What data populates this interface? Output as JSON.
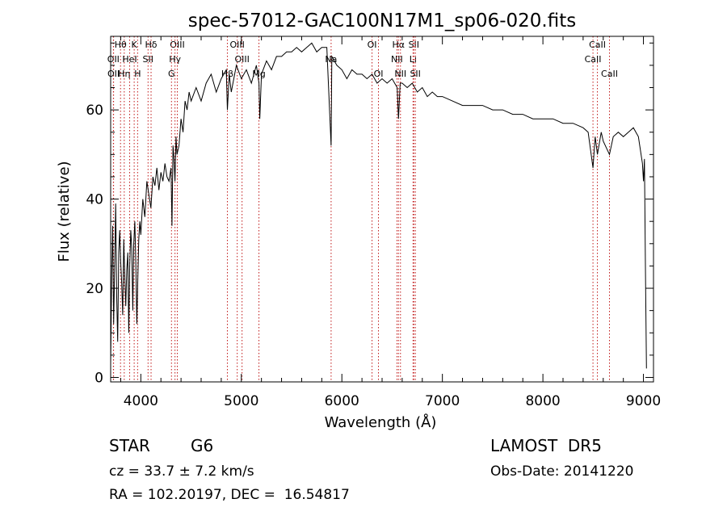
{
  "chart_data": {
    "type": "line",
    "title": "spec-57012-GAC100N17M1_sp06-020.fits",
    "xlabel": "Wavelength (Å)",
    "ylabel": "Flux (relative)",
    "xlim": [
      3700,
      9100
    ],
    "ylim": [
      -1,
      76.5
    ],
    "x_ticks": [
      4000,
      5000,
      6000,
      7000,
      8000,
      9000
    ],
    "y_ticks": [
      0,
      20,
      40,
      60
    ],
    "grid": false,
    "series": [
      {
        "x": [
          3700,
          3710,
          3720,
          3730,
          3740,
          3750,
          3760,
          3770,
          3780,
          3790,
          3800,
          3810,
          3820,
          3830,
          3840,
          3850,
          3860,
          3870,
          3880,
          3890,
          3900,
          3910,
          3920,
          3930,
          3940,
          3950,
          3960,
          3970,
          3980,
          3990,
          4000,
          4020,
          4040,
          4060,
          4080,
          4100,
          4120,
          4140,
          4160,
          4180,
          4200,
          4220,
          4240,
          4260,
          4280,
          4300,
          4310,
          4320,
          4330,
          4340,
          4350,
          4360,
          4380,
          4400,
          4420,
          4440,
          4460,
          4480,
          4500,
          4550,
          4600,
          4650,
          4700,
          4750,
          4800,
          4850,
          4861,
          4880,
          4900,
          4950,
          5000,
          5050,
          5100,
          5150,
          5175,
          5183,
          5200,
          5250,
          5300,
          5350,
          5400,
          5450,
          5500,
          5550,
          5600,
          5650,
          5700,
          5750,
          5800,
          5850,
          5893,
          5900,
          5950,
          6000,
          6050,
          6100,
          6150,
          6200,
          6250,
          6300,
          6350,
          6400,
          6450,
          6500,
          6550,
          6563,
          6580,
          6600,
          6650,
          6700,
          6750,
          6800,
          6850,
          6900,
          6950,
          7000,
          7100,
          7200,
          7300,
          7400,
          7500,
          7600,
          7700,
          7800,
          7900,
          8000,
          8100,
          8200,
          8300,
          8400,
          8450,
          8498,
          8520,
          8542,
          8580,
          8600,
          8662,
          8700,
          8750,
          8800,
          8850,
          8900,
          8950,
          8990,
          9000,
          9010,
          9020,
          9030
        ],
        "y": [
          3,
          22,
          34,
          12,
          25,
          39,
          18,
          8,
          28,
          33,
          26,
          21,
          14,
          31,
          23,
          16,
          24,
          28,
          10,
          25,
          33,
          29,
          15,
          30,
          35,
          26,
          12,
          22,
          31,
          35,
          32,
          40,
          36,
          44,
          41,
          38,
          45,
          43,
          47,
          42,
          46,
          44,
          48,
          45,
          44,
          47,
          34,
          52,
          49,
          44,
          54,
          50,
          52,
          58,
          55,
          62,
          60,
          64,
          62,
          65,
          62,
          66,
          68,
          64,
          67,
          69,
          60,
          68,
          64,
          70,
          67,
          69,
          66,
          70,
          66,
          58,
          68,
          71,
          69,
          72,
          72,
          73,
          73,
          74,
          73,
          74,
          75,
          73,
          74,
          74,
          52,
          72,
          70,
          69,
          67,
          69,
          68,
          68,
          67,
          68,
          66,
          67,
          66,
          67,
          65,
          58,
          66,
          66,
          65,
          66,
          64,
          65,
          63,
          64,
          63,
          63,
          62,
          61,
          61,
          61,
          60,
          60,
          59,
          59,
          58,
          58,
          58,
          57,
          57,
          56,
          55,
          47,
          54,
          50,
          55,
          53,
          50,
          54,
          55,
          54,
          55,
          56,
          54,
          48,
          44,
          49,
          25,
          2
        ]
      }
    ],
    "lines": [
      {
        "name": "Hθ",
        "x": 3798,
        "row": 0
      },
      {
        "name": "OII",
        "x": 3727,
        "row": 1
      },
      {
        "name": "OII",
        "x": 3729,
        "row": 2
      },
      {
        "name": "Hη",
        "x": 3835,
        "row": 2
      },
      {
        "name": "K",
        "x": 3934,
        "row": 0
      },
      {
        "name": "H",
        "x": 3968,
        "row": 2
      },
      {
        "name": "HeI",
        "x": 3889,
        "row": 1
      },
      {
        "name": "Hδ",
        "x": 4102,
        "row": 0
      },
      {
        "name": "SII",
        "x": 4072,
        "row": 1
      },
      {
        "name": "OIII",
        "x": 4363,
        "row": 0
      },
      {
        "name": "Hγ",
        "x": 4340,
        "row": 1
      },
      {
        "name": "G",
        "x": 4305,
        "row": 2
      },
      {
        "name": "OIII",
        "x": 4959,
        "row": 0
      },
      {
        "name": "OIII",
        "x": 5007,
        "row": 1
      },
      {
        "name": "Hβ",
        "x": 4861,
        "row": 2
      },
      {
        "name": "Mg",
        "x": 5175,
        "row": 2
      },
      {
        "name": "Na",
        "x": 5893,
        "row": 1
      },
      {
        "name": "OI",
        "x": 6300,
        "row": 0
      },
      {
        "name": "OI",
        "x": 6364,
        "row": 2
      },
      {
        "name": "Hα",
        "x": 6563,
        "row": 0
      },
      {
        "name": "NII",
        "x": 6548,
        "row": 1
      },
      {
        "name": "NII",
        "x": 6583,
        "row": 2
      },
      {
        "name": "SII",
        "x": 6716,
        "row": 0
      },
      {
        "name": "Li",
        "x": 6708,
        "row": 1
      },
      {
        "name": "SII",
        "x": 6731,
        "row": 2
      },
      {
        "name": "CaII",
        "x": 8542,
        "row": 0
      },
      {
        "name": "CaII",
        "x": 8498,
        "row": 1
      },
      {
        "name": "CaII",
        "x": 8662,
        "row": 2
      }
    ]
  },
  "info": {
    "object_class": "STAR",
    "subclass": "G6",
    "cz": "cz = 33.7 ± 7.2 km/s",
    "coords": "RA = 102.20197, DEC =  16.54817",
    "survey": "LAMOST  DR5",
    "obs_date": "Obs-Date: 20141220"
  }
}
